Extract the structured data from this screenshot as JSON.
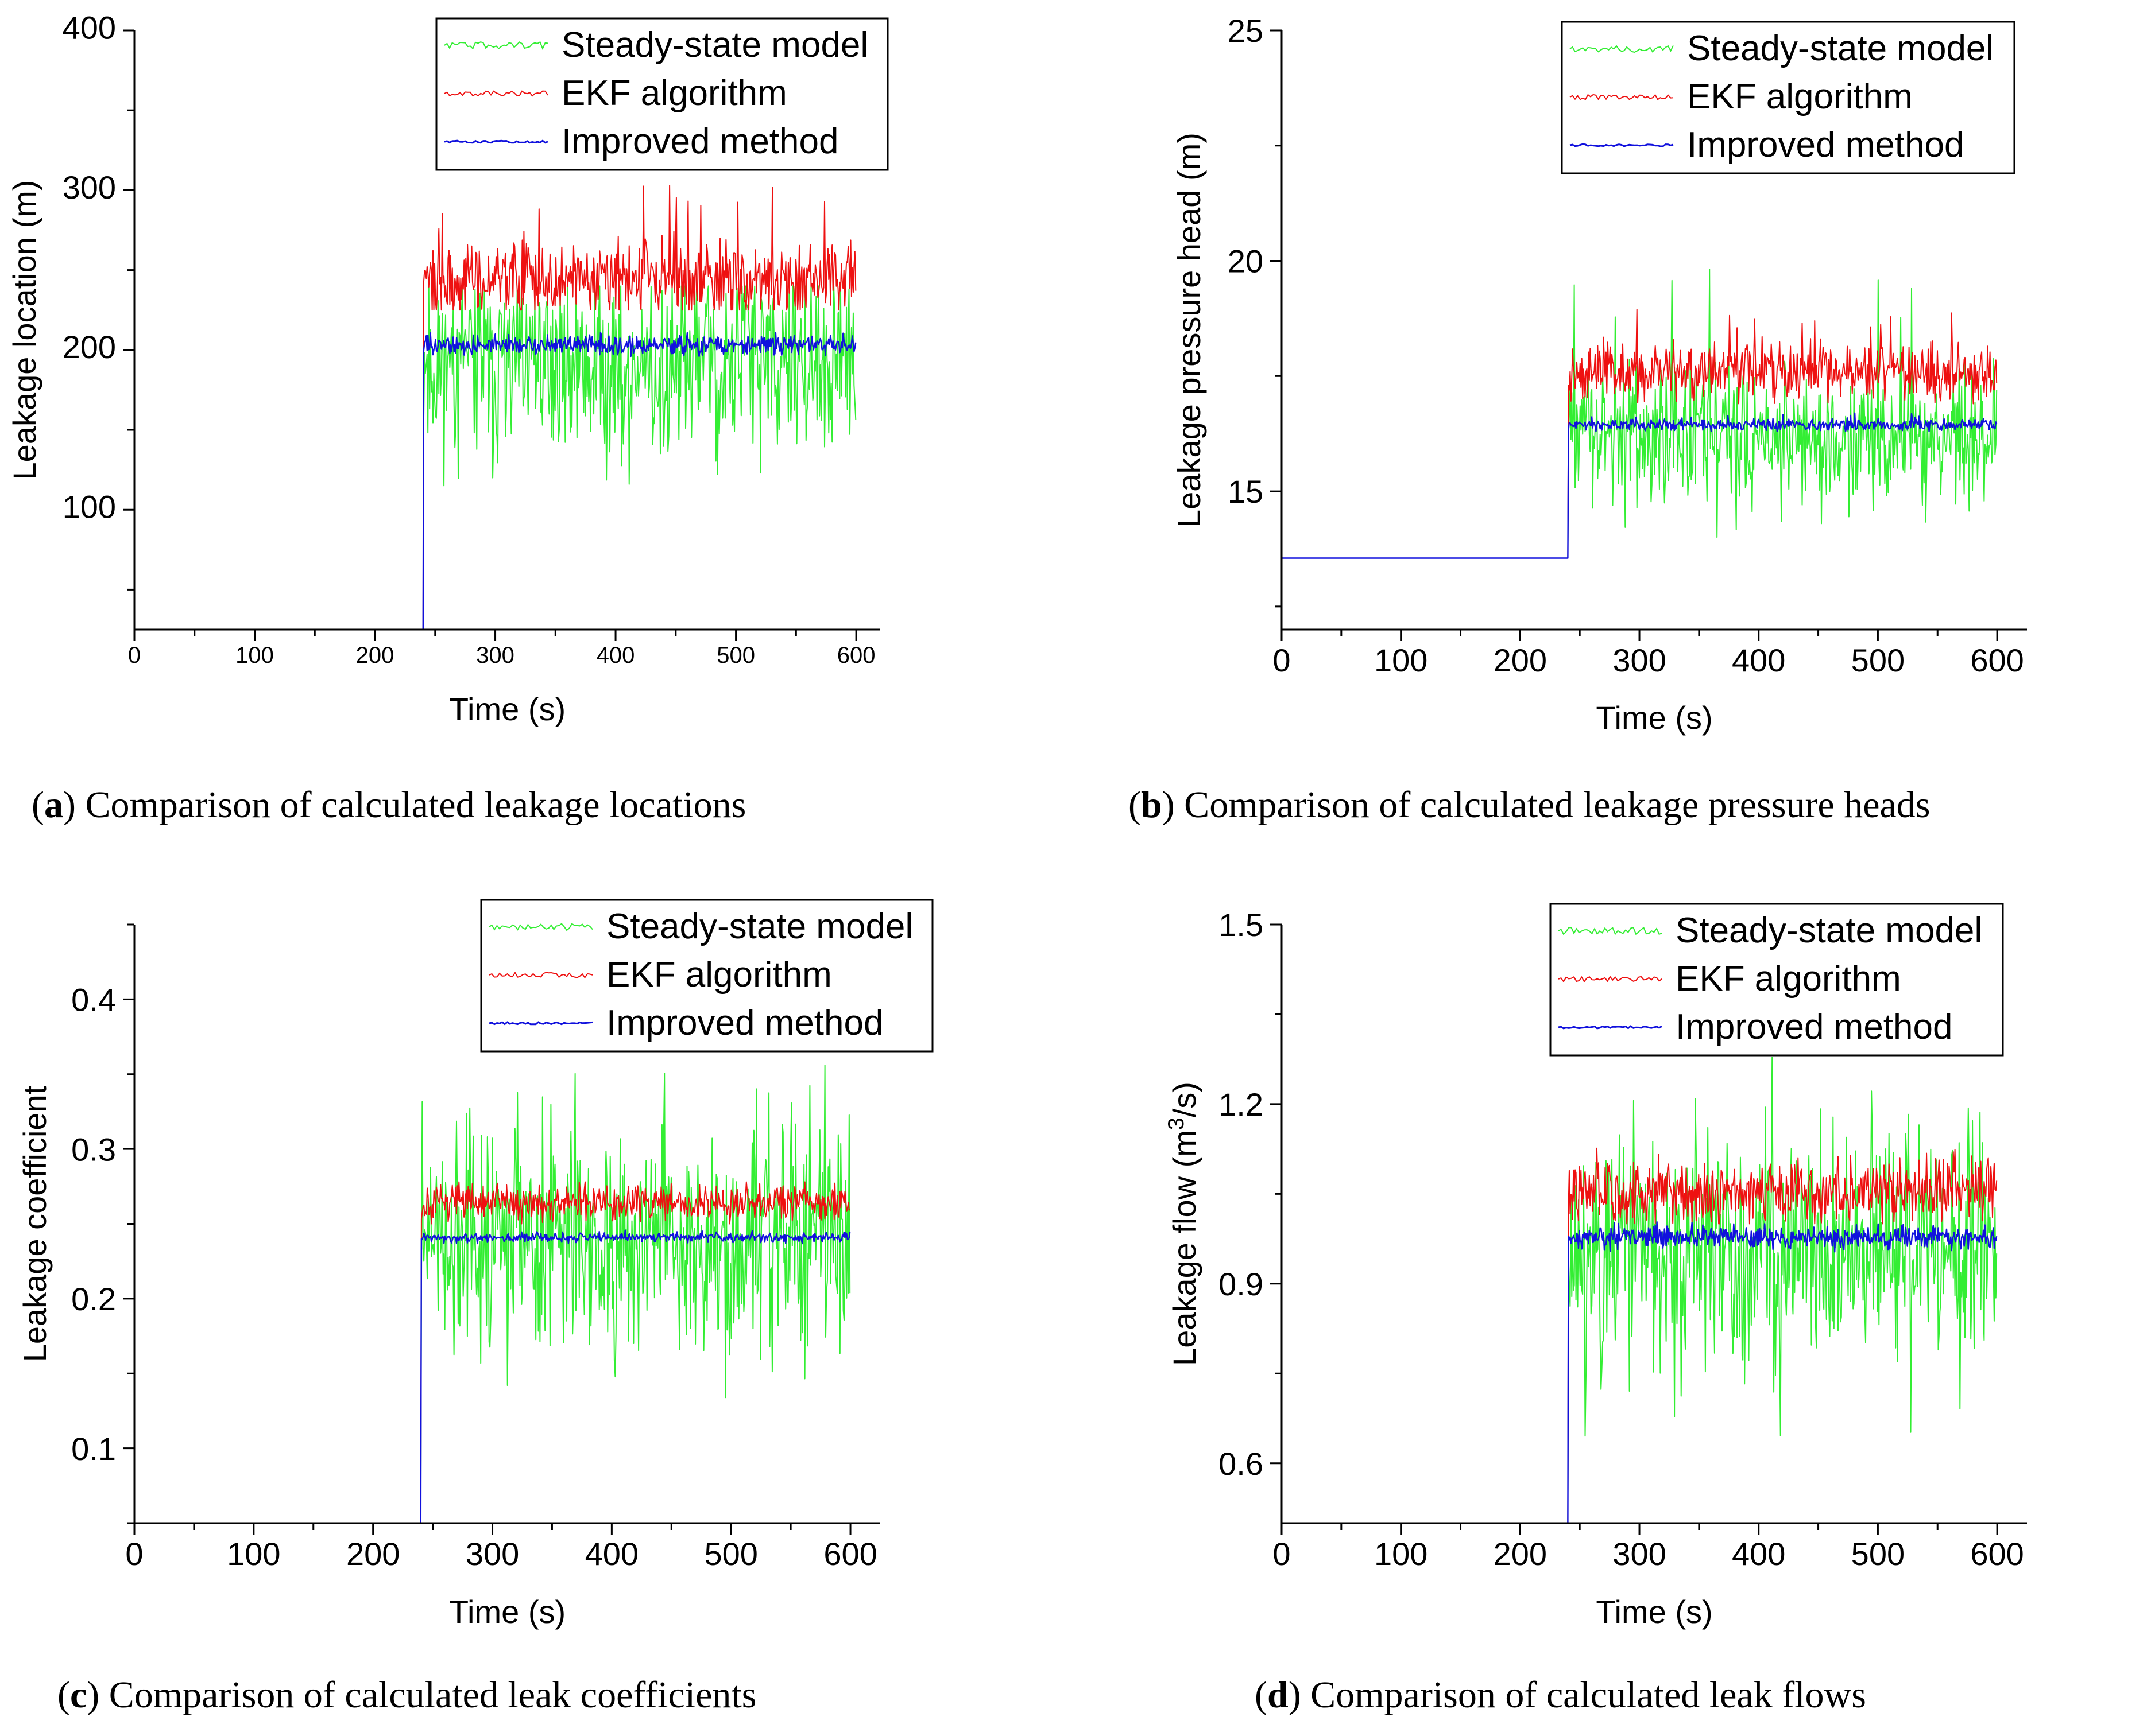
{
  "colors": {
    "steady": "#33ee33",
    "ekf": "#ee1111",
    "improved": "#1111dd",
    "axis": "#000000"
  },
  "chart_data": [
    {
      "id": "a",
      "type": "line",
      "caption_letter": "a",
      "caption_text": ") Comparison of calculated leakage locations",
      "title": "",
      "xlabel": "Time (s)",
      "ylabel": "Leakage location (m)",
      "xlim": [
        0,
        620
      ],
      "ylim": [
        25,
        400
      ],
      "xticks": [
        0,
        100,
        200,
        300,
        400,
        500,
        600
      ],
      "yticks": [
        100,
        200,
        300,
        400
      ],
      "legend_position": "top-right",
      "leak_time": 240,
      "series": [
        {
          "name": "Steady-state model",
          "color_key": "steady",
          "initial": 25,
          "level": 190,
          "noise": 28,
          "spike_min": 115,
          "spike_max": 240,
          "seed": 11
        },
        {
          "name": "EKF algorithm",
          "color_key": "ekf",
          "initial": 25,
          "level": 245,
          "noise": 12,
          "spike_min": 225,
          "spike_max": 303,
          "seed": 22
        },
        {
          "name": "Improved method",
          "color_key": "improved",
          "initial": 25,
          "level": 203,
          "noise": 3,
          "spike_min": 196,
          "spike_max": 211,
          "seed": 33
        }
      ]
    },
    {
      "id": "b",
      "type": "line",
      "caption_letter": "b",
      "caption_text": ") Comparison of calculated leakage pressure heads",
      "title": "",
      "xlabel": "Time (s)",
      "ylabel": "Leakage pressure head (m)",
      "xlim": [
        0,
        625
      ],
      "ylim": [
        12,
        25
      ],
      "xticks": [
        0,
        100,
        200,
        300,
        400,
        500,
        600
      ],
      "yticks": [
        15,
        20,
        25
      ],
      "legend_position": "top-right",
      "leak_time": 240,
      "series": [
        {
          "name": "Steady-state model",
          "color_key": "steady",
          "initial": 13.55,
          "level": 16.2,
          "noise": 0.75,
          "spike_min": 13.8,
          "spike_max": 20.1,
          "seed": 44
        },
        {
          "name": "EKF algorithm",
          "color_key": "ekf",
          "initial": 13.55,
          "level": 17.6,
          "noise": 0.3,
          "spike_min": 16.9,
          "spike_max": 19.0,
          "seed": 55
        },
        {
          "name": "Improved method",
          "color_key": "improved",
          "initial": 13.55,
          "level": 16.45,
          "noise": 0.06,
          "spike_min": 16.3,
          "spike_max": 16.7,
          "seed": 66
        }
      ]
    },
    {
      "id": "c",
      "type": "line",
      "caption_letter": "c",
      "caption_text": ") Comparison of calculated leak coefficients",
      "title": "",
      "xlabel": "Time (s)",
      "ylabel": "Leakage coefficient",
      "xlim": [
        0,
        625
      ],
      "ylim": [
        0.05,
        0.45
      ],
      "xticks": [
        0,
        100,
        200,
        300,
        400,
        500,
        600
      ],
      "yticks": [
        0.1,
        0.2,
        0.3,
        0.4
      ],
      "legend_position": "top-right",
      "leak_time": 240,
      "series": [
        {
          "name": "Steady-state model",
          "color_key": "steady",
          "initial": 0.05,
          "level": 0.235,
          "noise": 0.035,
          "spike_min": 0.133,
          "spike_max": 0.365,
          "seed": 77
        },
        {
          "name": "EKF algorithm",
          "color_key": "ekf",
          "initial": 0.05,
          "level": 0.264,
          "noise": 0.006,
          "spike_min": 0.25,
          "spike_max": 0.278,
          "seed": 88
        },
        {
          "name": "Improved method",
          "color_key": "improved",
          "initial": 0.05,
          "level": 0.241,
          "noise": 0.0015,
          "spike_min": 0.236,
          "spike_max": 0.246,
          "seed": 99
        }
      ]
    },
    {
      "id": "d",
      "type": "line",
      "caption_letter": "d",
      "caption_text": ") Comparison of calculated leak flows",
      "title": "",
      "xlabel": "Time (s)",
      "ylabel": "Leakage flow (m",
      "ylabel_sup": "3",
      "ylabel_tail": "/s)",
      "xlim": [
        0,
        625
      ],
      "ylim": [
        0.5,
        1.5
      ],
      "xticks": [
        0,
        100,
        200,
        300,
        400,
        500,
        600
      ],
      "yticks": [
        0.6,
        0.9,
        1.2,
        1.5
      ],
      "legend_position": "top-right",
      "leak_time": 240,
      "series": [
        {
          "name": "Steady-state model",
          "color_key": "steady",
          "initial": 0.5,
          "level": 0.96,
          "noise": 0.09,
          "spike_min": 0.645,
          "spike_max": 1.28,
          "seed": 111
        },
        {
          "name": "EKF algorithm",
          "color_key": "ekf",
          "initial": 0.5,
          "level": 1.055,
          "noise": 0.025,
          "spike_min": 1.0,
          "spike_max": 1.13,
          "seed": 122
        },
        {
          "name": "Improved method",
          "color_key": "improved",
          "initial": 0.5,
          "level": 0.978,
          "noise": 0.009,
          "spike_min": 0.95,
          "spike_max": 1.005,
          "seed": 133
        }
      ]
    }
  ]
}
